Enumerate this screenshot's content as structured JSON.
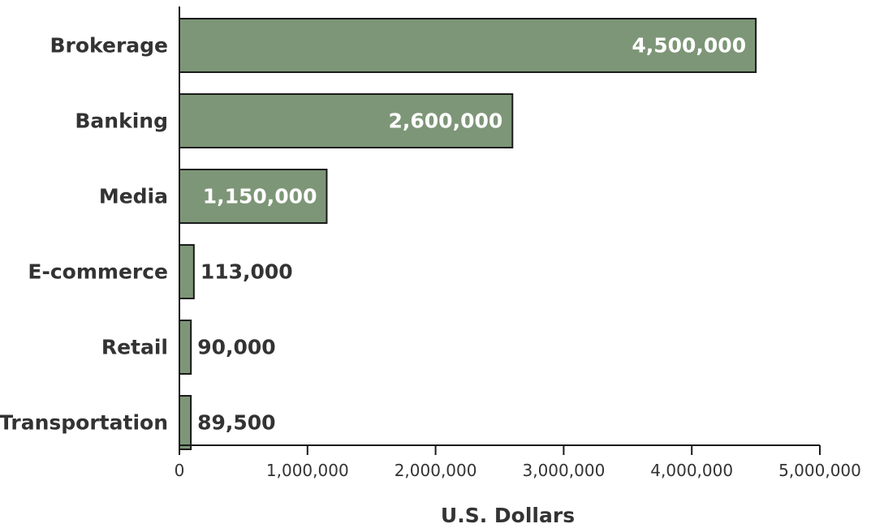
{
  "chart_data": {
    "type": "bar",
    "orientation": "horizontal",
    "title": "",
    "xlabel": "U.S. Dollars",
    "ylabel": "",
    "categories": [
      "Brokerage",
      "Banking",
      "Media",
      "E-commerce",
      "Retail",
      "Transportation"
    ],
    "values": [
      4500000,
      2600000,
      1150000,
      113000,
      90000,
      89500
    ],
    "value_labels": [
      "4,500,000",
      "2,600,000",
      "1,150,000",
      "113,000",
      "90,000",
      "89,500"
    ],
    "xlim": [
      0,
      5000000
    ],
    "x_ticks": [
      0,
      1000000,
      2000000,
      3000000,
      4000000,
      5000000
    ],
    "x_tick_labels": [
      "0",
      "1,000,000",
      "2,000,000",
      "3,000,000",
      "4,000,000",
      "5,000,000"
    ],
    "grid": false,
    "legend": "none",
    "colors": {
      "bar_fill": "#7d9677",
      "bar_stroke": "#1a1a1a",
      "label_inside": "#ffffff",
      "text": "#333333"
    }
  }
}
